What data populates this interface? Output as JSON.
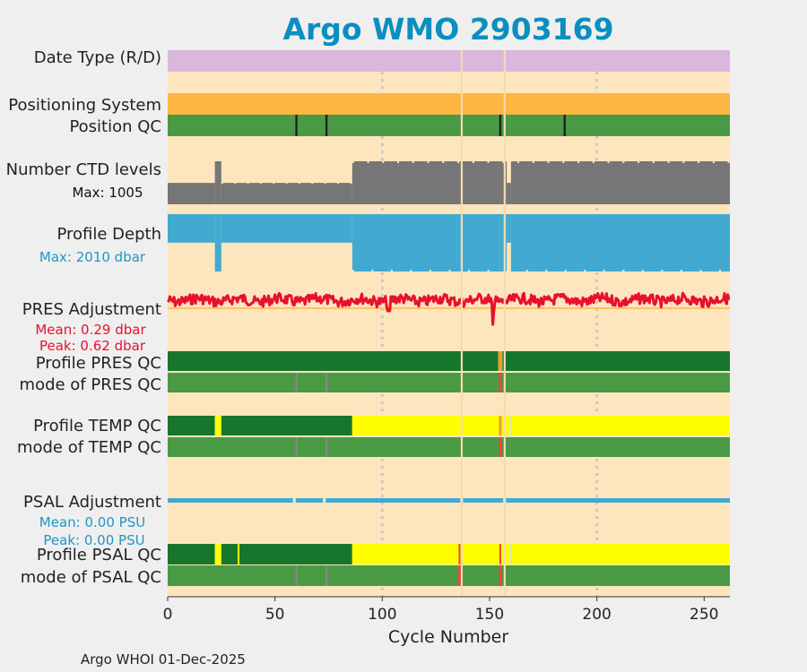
{
  "colors": {
    "background": "#efefef",
    "plot_bg": "#fde6bd",
    "title": "#0a8fbf",
    "date_type": "#dab7dc",
    "positioning": "#fdb543",
    "qc_good": "#4a9a45",
    "qc_dark_good": "#16762b",
    "qc_probable": "#ffff00",
    "qc_bad": "#e8483a",
    "gray": "#767676",
    "profile_depth": "#42aad0",
    "pres_adjust": "#e8112d",
    "pres_mean_line": "#fdb543",
    "psal_adjust": "#42aad0",
    "grid": "#c8c8c8"
  },
  "chart_data": {
    "type": "table",
    "title": "Argo WMO 2903169",
    "xlabel": "Cycle Number",
    "xlim": [
      0,
      262
    ],
    "xticks": [
      0,
      50,
      100,
      150,
      200,
      250
    ],
    "grid_x": [
      100,
      200
    ],
    "rows": [
      {
        "id": "date_type",
        "label": "Date Type (R/D)"
      },
      {
        "id": "positioning",
        "label": "Positioning System"
      },
      {
        "id": "position_qc",
        "label": "Position QC"
      },
      {
        "id": "ctd_levels",
        "label": "Number CTD levels",
        "sub": "Max: 1005",
        "max": 1005
      },
      {
        "id": "profile_depth",
        "label": "Profile Depth",
        "sub": "Max: 2010 dbar",
        "max": 2010
      },
      {
        "id": "pres_adjust",
        "label": "PRES Adjustment",
        "sub1": "Mean: 0.29 dbar",
        "sub2": "Peak: 0.62 dbar",
        "mean": 0.29,
        "peak": 0.62
      },
      {
        "id": "profile_pres_qc",
        "label": "Profile PRES QC"
      },
      {
        "id": "mode_pres_qc",
        "label": "mode of PRES QC"
      },
      {
        "id": "profile_temp_qc",
        "label": "Profile TEMP QC"
      },
      {
        "id": "mode_temp_qc",
        "label": "mode of TEMP QC"
      },
      {
        "id": "psal_adjust",
        "label": "PSAL Adjustment",
        "sub1": "Mean: 0.00 PSU",
        "sub2": "Peak: 0.00 PSU",
        "mean": 0.0,
        "peak": 0.0
      },
      {
        "id": "profile_psal_qc",
        "label": "Profile PSAL QC"
      },
      {
        "id": "mode_psal_qc",
        "label": "mode of PSAL QC"
      }
    ],
    "missing_cycles": [
      137,
      157
    ],
    "position_qc_dark_cycles": [
      60,
      74,
      155,
      185
    ],
    "ctd_levels_segments": [
      {
        "from": 0,
        "to": 22,
        "value": 500
      },
      {
        "from": 22,
        "to": 25,
        "value": 1005
      },
      {
        "from": 25,
        "to": 86,
        "value": 500
      },
      {
        "from": 86,
        "to": 155,
        "value": 1005
      },
      {
        "from": 155,
        "to": 158,
        "value": 1005
      },
      {
        "from": 158,
        "to": 160,
        "value": 500
      },
      {
        "from": 160,
        "to": 262,
        "value": 1005
      }
    ],
    "profile_depth_segments": [
      {
        "from": 0,
        "to": 22,
        "value": 1000
      },
      {
        "from": 22,
        "to": 25,
        "value": 2010
      },
      {
        "from": 25,
        "to": 86,
        "value": 1000
      },
      {
        "from": 86,
        "to": 155,
        "value": 2010
      },
      {
        "from": 155,
        "to": 158,
        "value": 2010
      },
      {
        "from": 158,
        "to": 160,
        "value": 1000
      },
      {
        "from": 160,
        "to": 262,
        "value": 2010
      }
    ],
    "profile_pres_qc_segments": [
      {
        "from": 0,
        "to": 154,
        "qc": "A"
      },
      {
        "from": 154,
        "to": 156,
        "qc": "B"
      },
      {
        "from": 156,
        "to": 262,
        "qc": "A"
      }
    ],
    "mode_pres_qc_bad_cycles": [
      155
    ],
    "profile_temp_qc_segments": [
      {
        "from": 0,
        "to": 22,
        "qc": "A"
      },
      {
        "from": 22,
        "to": 25,
        "qc": "B"
      },
      {
        "from": 25,
        "to": 86,
        "qc": "A"
      },
      {
        "from": 86,
        "to": 262,
        "qc": "B"
      }
    ],
    "mode_temp_qc_bad_cycles": [
      155
    ],
    "profile_psal_qc_segments": [
      {
        "from": 0,
        "to": 22,
        "qc": "A"
      },
      {
        "from": 22,
        "to": 25,
        "qc": "B"
      },
      {
        "from": 25,
        "to": 33,
        "qc": "A"
      },
      {
        "from": 33,
        "to": 86,
        "qc": "A"
      },
      {
        "from": 86,
        "to": 262,
        "qc": "B"
      }
    ],
    "profile_psal_qc_bad_cycles": [
      136,
      155
    ],
    "mode_psal_qc_bad_cycles": [
      136,
      155
    ]
  },
  "footer": "Argo WHOI 01-Dec-2025"
}
